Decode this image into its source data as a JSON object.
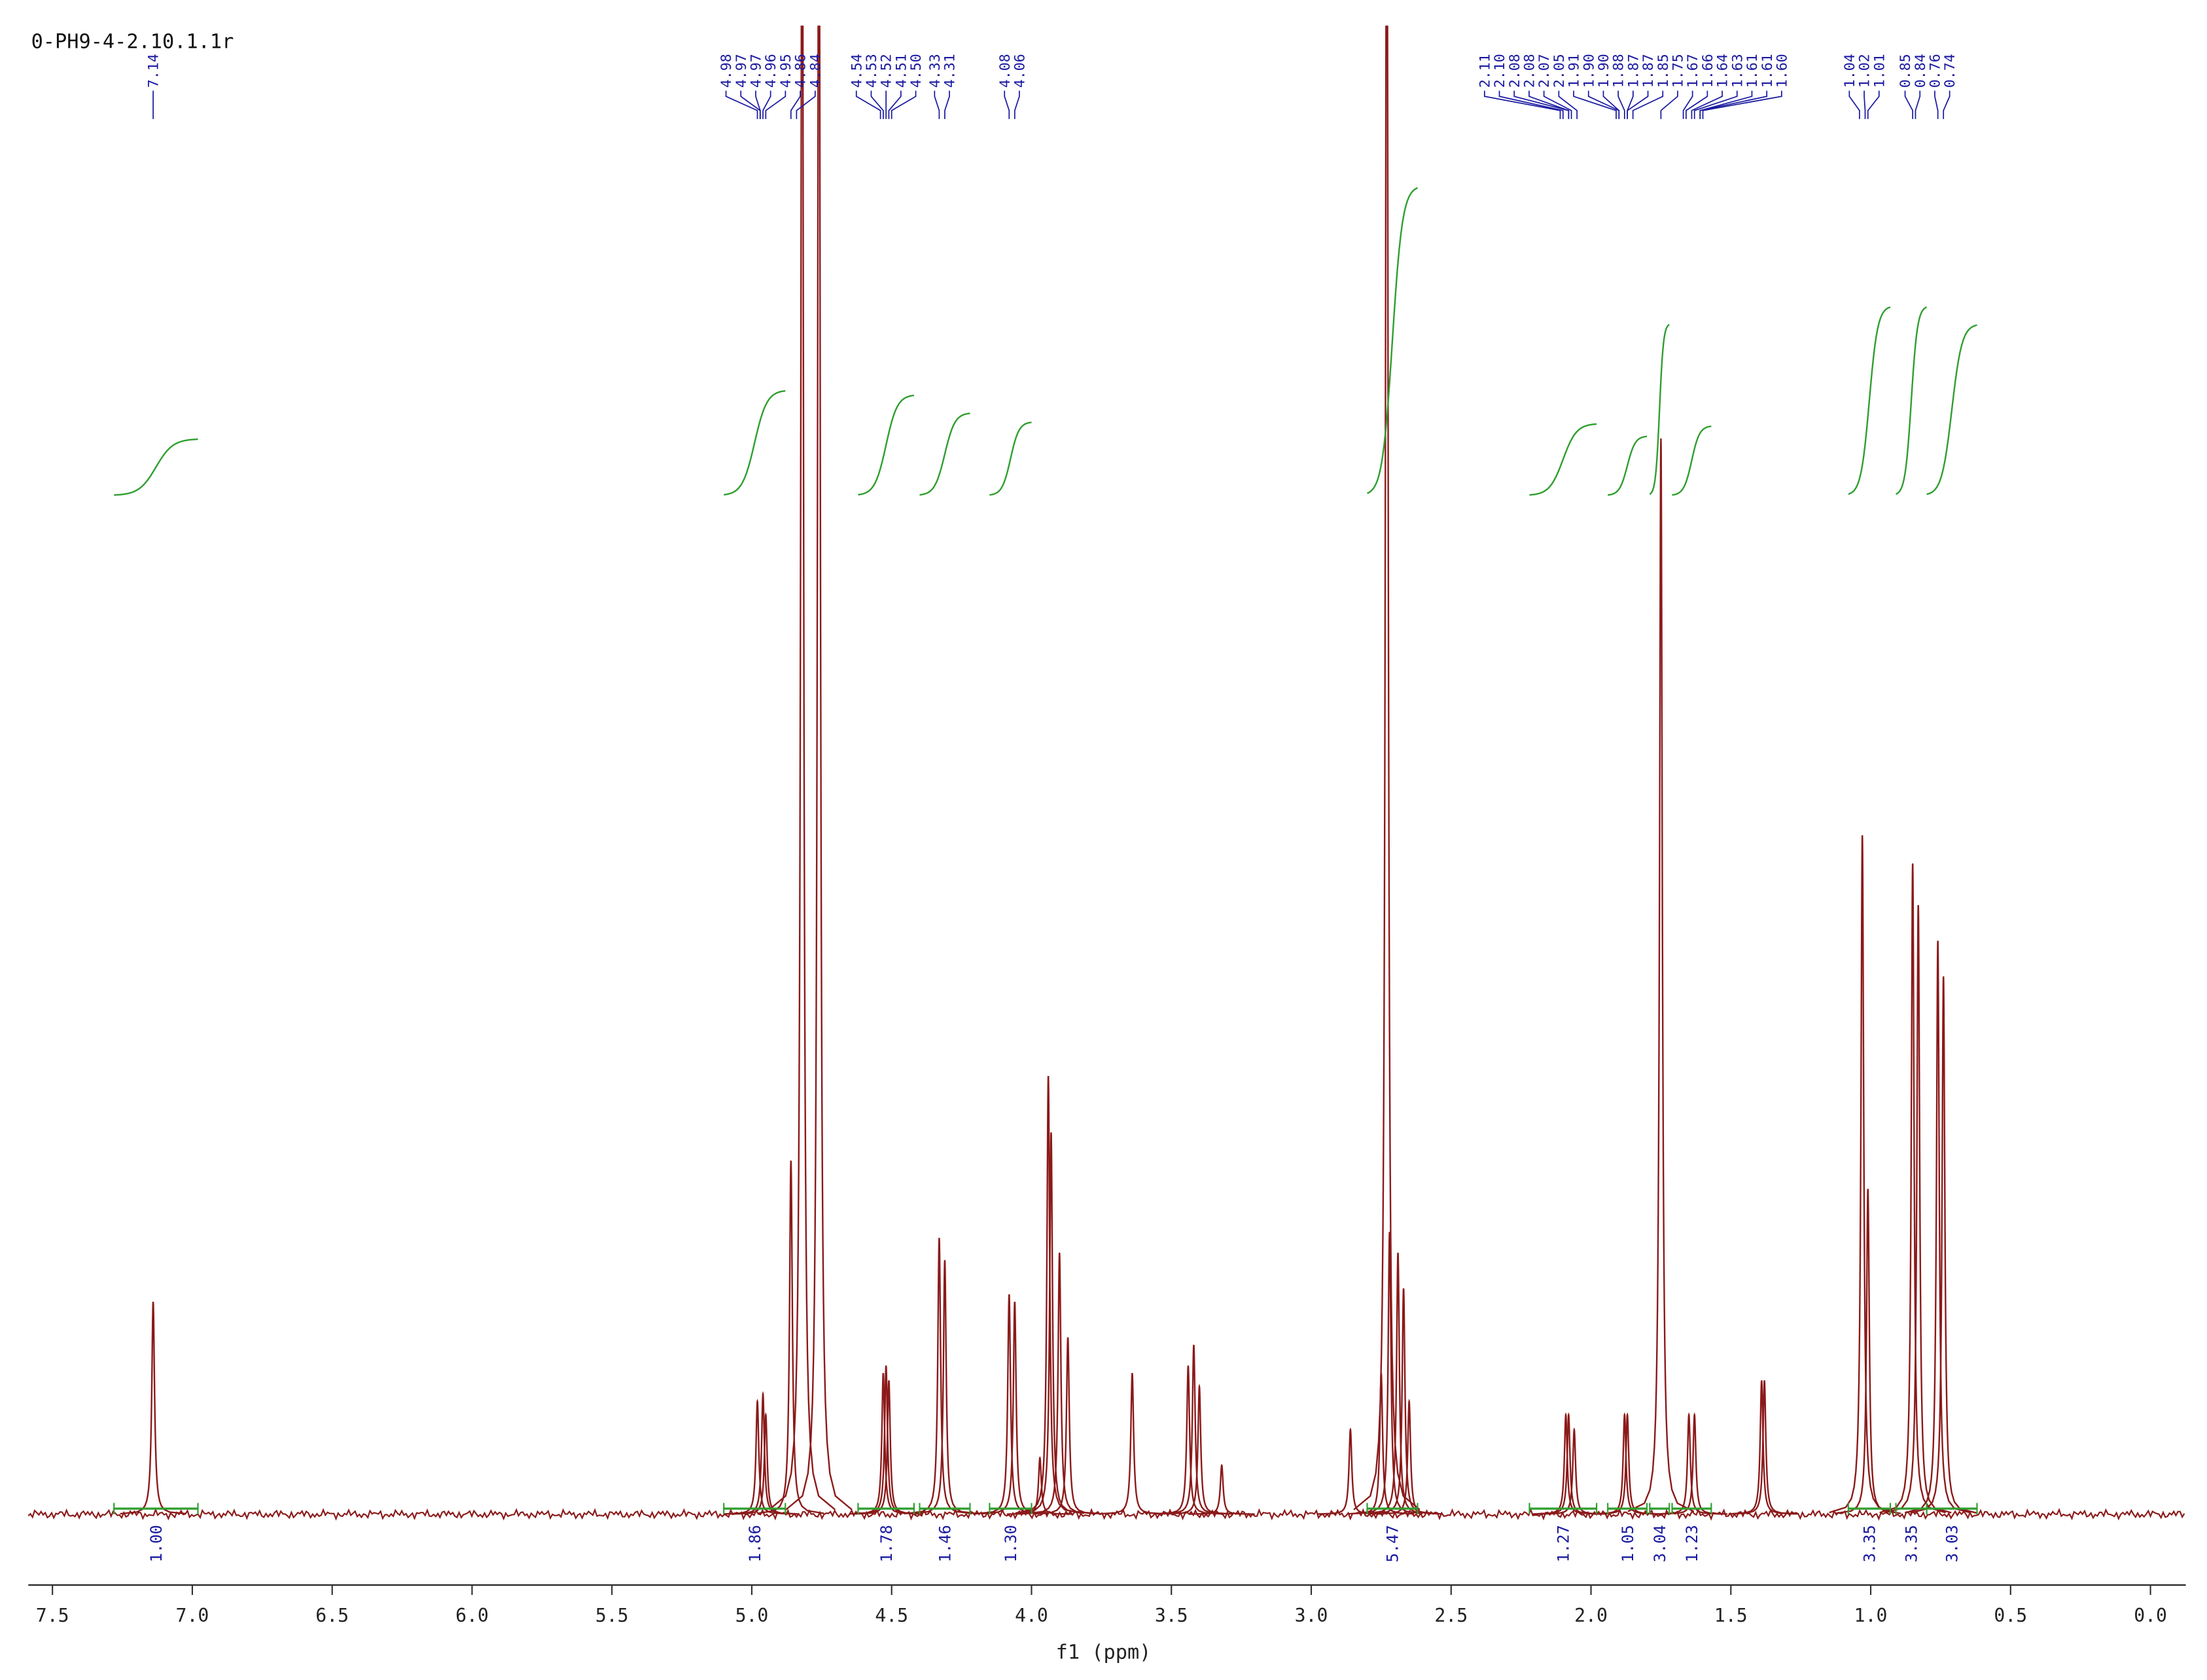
{
  "chart_data": {
    "type": "spectrum",
    "title": "0-PH9-4-2.10.1.1r",
    "xlabel": "f1 (ppm)",
    "xlim": [
      7.6,
      -0.1
    ],
    "xticks": [
      7.5,
      {
        "value": 7,
        "label": "7.0"
      },
      6.5,
      {
        "value": 6,
        "label": "6.0"
      },
      5.5,
      {
        "value": 5,
        "label": "5.0"
      },
      4.5,
      {
        "value": 4,
        "label": "4.0"
      },
      3.5,
      {
        "value": 3,
        "label": "3.0"
      },
      2.5,
      {
        "value": 2,
        "label": "2.0"
      },
      1.5,
      {
        "value": 1,
        "label": "1.0"
      },
      0.5,
      {
        "value": 0,
        "label": "0.0"
      }
    ],
    "ylim": [
      0,
      100
    ],
    "series": [
      {
        "color": "#8b1a1a",
        "x": [
          7.14,
          4.98,
          4.96,
          4.95,
          4.86,
          4.82,
          4.76,
          4.53,
          4.52,
          4.51,
          4.33,
          4.31,
          4.08,
          4.06,
          3.97,
          3.94,
          3.93,
          3.9,
          3.87,
          3.64,
          3.44,
          3.42,
          3.4,
          3.32,
          2.86,
          2.75,
          2.73,
          2.72,
          2.69,
          2.67,
          2.65,
          2.09,
          2.08,
          2.06,
          1.88,
          1.87,
          1.75,
          1.65,
          1.63,
          1.39,
          1.38,
          1.03,
          1.01,
          0.85,
          0.83,
          0.76,
          0.74
        ],
        "values": [
          14.3,
          7.6,
          8.1,
          6.7,
          23.8,
          120,
          120,
          9.5,
          10,
          9,
          18.6,
          17.1,
          14.8,
          14.3,
          3.8,
          29.5,
          25.7,
          17.6,
          11.9,
          9.5,
          10,
          11.4,
          8.6,
          3.3,
          5.7,
          9.5,
          120,
          19,
          17.6,
          15.2,
          7.6,
          6.7,
          6.7,
          5.7,
          6.7,
          6.7,
          72.4,
          6.7,
          6.7,
          9,
          9,
          45.7,
          21.9,
          43.8,
          41,
          38.6,
          36.2
        ]
      }
    ],
    "peak_labels": [
      "7.14",
      "4.98",
      "4.97",
      "4.97",
      "4.96",
      "4.95",
      "4.86",
      "4.84",
      "4.54",
      "4.53",
      "4.52",
      "4.51",
      "4.50",
      "4.33",
      "4.31",
      "4.08",
      "4.06",
      "2.11",
      "2.10",
      "2.08",
      "2.08",
      "2.07",
      "2.05",
      "1.91",
      "1.90",
      "1.90",
      "1.88",
      "1.87",
      "1.87",
      "1.85",
      "1.75",
      "1.67",
      "1.66",
      "1.64",
      "1.63",
      "1.61",
      "1.61",
      "1.60",
      "1.04",
      "1.02",
      "1.01",
      "0.85",
      "0.84",
      "0.76",
      "0.74"
    ],
    "peak_label_color": "#1a1aa0",
    "integrals": {
      "color": "#2e9e2e",
      "ranges": [
        [
          7.28,
          6.98
        ],
        [
          5.1,
          4.88
        ],
        [
          4.62,
          4.42
        ],
        [
          4.4,
          4.22
        ],
        [
          4.15,
          4.0
        ],
        [
          2.8,
          2.62
        ],
        [
          2.22,
          1.98
        ],
        [
          1.94,
          1.8
        ],
        [
          1.79,
          1.72
        ],
        [
          1.71,
          1.57
        ],
        [
          1.08,
          0.93
        ],
        [
          0.91,
          0.8
        ],
        [
          0.8,
          0.62
        ]
      ],
      "values": [
        1,
        1.86,
        1.78,
        1.46,
        1.3,
        5.47,
        1.27,
        1.05,
        3.04,
        1.23,
        3.35,
        3.35,
        3.03
      ],
      "value_labels": [
        "1.00",
        "1.86",
        "1.78",
        "1.46",
        "1.30",
        "5.47",
        "1.27",
        "1.05",
        "3.04",
        "1.23",
        "3.35",
        "3.35",
        "3.03"
      ]
    }
  }
}
